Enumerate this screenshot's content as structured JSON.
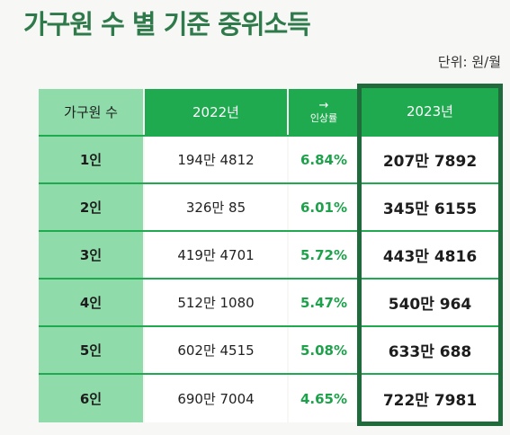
{
  "title": "가구원 수 별 기준 중위소득",
  "unit_label": "단위: 원/월",
  "table": {
    "headers": {
      "household": "가구원 수",
      "y2022": "2022년",
      "rate_arrow": "→",
      "rate": "인상률",
      "y2023": "2023년"
    },
    "rows": [
      {
        "size": "1인",
        "y2022": "194만 4812",
        "rate": "6.84%",
        "y2023": "207만 7892"
      },
      {
        "size": "2인",
        "y2022": "326만 85",
        "rate": "6.01%",
        "y2023": "345만 6155"
      },
      {
        "size": "3인",
        "y2022": "419만 4701",
        "rate": "5.72%",
        "y2023": "443만 4816"
      },
      {
        "size": "4인",
        "y2022": "512만 1080",
        "rate": "5.47%",
        "y2023": "540만 964"
      },
      {
        "size": "5인",
        "y2022": "602만 4515",
        "rate": "5.08%",
        "y2023": "633만 688"
      },
      {
        "size": "6인",
        "y2022": "690만 7004",
        "rate": "4.65%",
        "y2023": "722만 7981"
      }
    ]
  },
  "colors": {
    "title": "#2f7a4a",
    "header_green": "#1faa4f",
    "label_mint": "#8fdcaa",
    "rate_text": "#1ea14b",
    "highlight_frame": "#1f6b3c"
  }
}
